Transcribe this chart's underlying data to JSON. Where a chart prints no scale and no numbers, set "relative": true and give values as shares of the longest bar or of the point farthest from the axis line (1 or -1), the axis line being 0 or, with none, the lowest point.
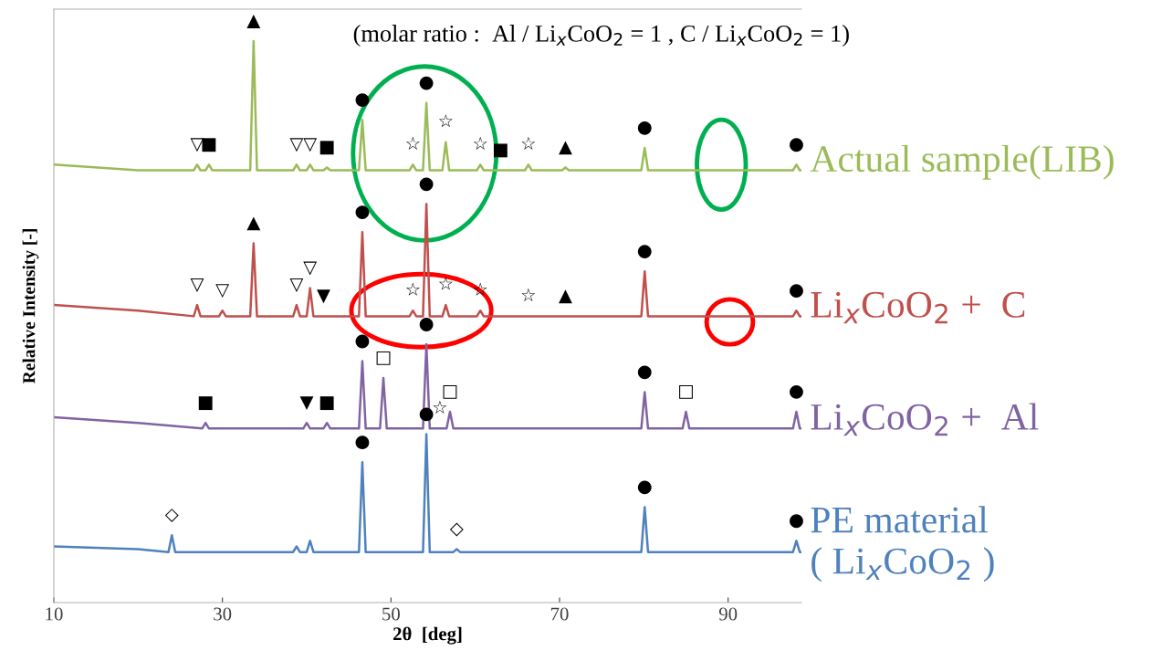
{
  "chart_data": {
    "type": "line",
    "relative": true,
    "xlabel": "2θ  [deg]",
    "ylabel": "Relative Intensity [-]",
    "xlim": [
      10,
      98.7
    ],
    "xticks": [
      10,
      30,
      50,
      70,
      90
    ],
    "tick_labels": "x",
    "grid": false,
    "legend": false,
    "marker": "none",
    "line_style": "solid",
    "series": [
      {
        "name": "Actual sample(LIB)",
        "color": "#9bbb59",
        "x": [
          10,
          20,
          26.6,
          27.0,
          27.4,
          28.0,
          28.4,
          28.8,
          33.3,
          33.7,
          34.1,
          38.4,
          38.8,
          39.2,
          40.0,
          40.4,
          40.8,
          42.0,
          42.4,
          42.8,
          46.2,
          46.6,
          47.0,
          52.2,
          52.6,
          53.0,
          53.8,
          54.2,
          54.6,
          56.1,
          56.5,
          56.9,
          60.2,
          60.6,
          61.0,
          65.9,
          66.3,
          66.7,
          70.3,
          70.7,
          71.1,
          79.7,
          80.1,
          80.5,
          97.7,
          98.1,
          98.5,
          98.7
        ],
        "values": [
          0.78,
          0.77,
          0.77,
          0.78,
          0.77,
          0.77,
          0.78,
          0.77,
          0.77,
          1.0,
          0.77,
          0.77,
          0.78,
          0.77,
          0.77,
          0.78,
          0.77,
          0.77,
          0.775,
          0.77,
          0.77,
          0.86,
          0.77,
          0.77,
          0.78,
          0.77,
          0.77,
          0.89,
          0.77,
          0.77,
          0.82,
          0.77,
          0.77,
          0.78,
          0.77,
          0.77,
          0.78,
          0.77,
          0.77,
          0.775,
          0.77,
          0.77,
          0.81,
          0.77,
          0.77,
          0.78,
          0.77,
          0.77
        ]
      },
      {
        "name": "Li$_{x}$CoO$_{2}$ +  C",
        "color": "#c0504d",
        "x": [
          10,
          20,
          26.6,
          27.0,
          27.4,
          29.6,
          30.0,
          30.4,
          33.3,
          33.7,
          34.1,
          38.4,
          38.8,
          39.2,
          40.0,
          40.4,
          40.8,
          46.2,
          46.6,
          47.0,
          52.2,
          52.6,
          53.0,
          53.8,
          54.2,
          54.6,
          56.1,
          56.5,
          56.9,
          60.2,
          60.6,
          61.0,
          79.7,
          80.1,
          80.5,
          97.7,
          98.1,
          98.5,
          98.7
        ],
        "values": [
          0.53,
          0.52,
          0.51,
          0.53,
          0.51,
          0.51,
          0.52,
          0.51,
          0.51,
          0.64,
          0.51,
          0.51,
          0.53,
          0.51,
          0.51,
          0.56,
          0.51,
          0.51,
          0.66,
          0.51,
          0.51,
          0.52,
          0.51,
          0.51,
          0.71,
          0.51,
          0.51,
          0.53,
          0.51,
          0.51,
          0.52,
          0.51,
          0.51,
          0.59,
          0.51,
          0.51,
          0.52,
          0.51,
          0.51
        ]
      },
      {
        "name": "Li$_{x}$CoO$_{2}$ +  Al",
        "color": "#8064a2",
        "x": [
          10,
          20,
          27.6,
          28.0,
          28.4,
          39.6,
          40.0,
          40.4,
          42.0,
          42.4,
          42.8,
          46.2,
          46.6,
          47.0,
          48.7,
          49.1,
          49.5,
          53.8,
          54.2,
          54.6,
          56.6,
          57.0,
          57.4,
          79.7,
          80.1,
          80.5,
          84.6,
          85.0,
          85.4,
          97.7,
          98.1,
          98.5,
          98.7
        ],
        "values": [
          0.33,
          0.32,
          0.31,
          0.32,
          0.31,
          0.31,
          0.32,
          0.31,
          0.31,
          0.32,
          0.31,
          0.31,
          0.43,
          0.31,
          0.31,
          0.4,
          0.31,
          0.31,
          0.46,
          0.31,
          0.31,
          0.34,
          0.31,
          0.31,
          0.375,
          0.31,
          0.31,
          0.34,
          0.31,
          0.31,
          0.34,
          0.31,
          0.31
        ]
      },
      {
        "name": "PE material\n( Li$_{x}$CoO$_{2}$ )",
        "color": "#4f81bd",
        "x": [
          10,
          20,
          23.6,
          24.0,
          24.4,
          38.4,
          38.8,
          39.2,
          40.0,
          40.4,
          40.8,
          46.2,
          46.6,
          47.0,
          53.8,
          54.2,
          54.6,
          57.4,
          57.8,
          58.2,
          79.7,
          80.1,
          80.5,
          97.7,
          98.1,
          98.5,
          98.7
        ],
        "values": [
          0.1,
          0.095,
          0.09,
          0.12,
          0.09,
          0.09,
          0.1,
          0.09,
          0.09,
          0.11,
          0.09,
          0.09,
          0.25,
          0.09,
          0.09,
          0.3,
          0.09,
          0.09,
          0.095,
          0.09,
          0.09,
          0.17,
          0.09,
          0.09,
          0.11,
          0.09,
          0.09
        ]
      }
    ],
    "annotations": [
      "(molar ratio :  Al / Li$_{x}$CoO$_{2}$ = 1 , C / Li$_{x}$CoO$_{2}$ = 1)",
      {
        "text": "▲",
        "x": 33.7,
        "y": 1.0
      },
      {
        "text": "▽",
        "x": 27.0,
        "y": 0.78
      },
      {
        "text": "■",
        "x": 28.4,
        "y": 0.78
      },
      {
        "text": "▽",
        "x": 38.8,
        "y": 0.78
      },
      {
        "text": "▽",
        "x": 40.4,
        "y": 0.78
      },
      {
        "text": "■",
        "x": 42.4,
        "y": 0.775
      },
      {
        "text": "●",
        "x": 46.6,
        "y": 0.86
      },
      {
        "text": "☆",
        "x": 52.6,
        "y": 0.78
      },
      {
        "text": "●",
        "x": 54.2,
        "y": 0.89
      },
      {
        "text": "☆",
        "x": 56.5,
        "y": 0.82
      },
      {
        "text": "☆",
        "x": 60.6,
        "y": 0.78
      },
      {
        "text": "■",
        "x": 63.0,
        "y": 0.77
      },
      {
        "text": "☆",
        "x": 66.3,
        "y": 0.78
      },
      {
        "text": "▲",
        "x": 70.7,
        "y": 0.775
      },
      {
        "text": "●",
        "x": 80.1,
        "y": 0.81
      },
      {
        "text": "●",
        "x": 98.1,
        "y": 0.78
      },
      {
        "text": "▽",
        "x": 27.0,
        "y": 0.53
      },
      {
        "text": "▽",
        "x": 30.0,
        "y": 0.52
      },
      {
        "text": "▲",
        "x": 33.7,
        "y": 0.64
      },
      {
        "text": "▽",
        "x": 38.8,
        "y": 0.53
      },
      {
        "text": "▽",
        "x": 40.4,
        "y": 0.56
      },
      {
        "text": "▼",
        "x": 42.0,
        "y": 0.51
      },
      {
        "text": "●",
        "x": 46.6,
        "y": 0.66
      },
      {
        "text": "☆",
        "x": 52.6,
        "y": 0.52
      },
      {
        "text": "●",
        "x": 54.2,
        "y": 0.71
      },
      {
        "text": "☆",
        "x": 56.5,
        "y": 0.53
      },
      {
        "text": "☆",
        "x": 60.6,
        "y": 0.52
      },
      {
        "text": "☆",
        "x": 66.3,
        "y": 0.51
      },
      {
        "text": "▲",
        "x": 70.7,
        "y": 0.51
      },
      {
        "text": "●",
        "x": 80.1,
        "y": 0.59
      },
      {
        "text": "●",
        "x": 98.1,
        "y": 0.52
      },
      {
        "text": "■",
        "x": 28.0,
        "y": 0.32
      },
      {
        "text": "▼",
        "x": 40.0,
        "y": 0.32
      },
      {
        "text": "■",
        "x": 42.4,
        "y": 0.32
      },
      {
        "text": "●",
        "x": 46.6,
        "y": 0.43
      },
      {
        "text": "□",
        "x": 49.1,
        "y": 0.4
      },
      {
        "text": "●",
        "x": 54.2,
        "y": 0.46
      },
      {
        "text": "☆",
        "x": 55.8,
        "y": 0.31
      },
      {
        "text": "□",
        "x": 57.0,
        "y": 0.34
      },
      {
        "text": "●",
        "x": 80.1,
        "y": 0.375
      },
      {
        "text": "□",
        "x": 85.0,
        "y": 0.34
      },
      {
        "text": "●",
        "x": 98.1,
        "y": 0.34
      },
      {
        "text": "◇",
        "x": 24.0,
        "y": 0.12
      },
      {
        "text": "●",
        "x": 46.6,
        "y": 0.25
      },
      {
        "text": "●",
        "x": 54.2,
        "y": 0.3
      },
      {
        "text": "◇",
        "x": 57.8,
        "y": 0.095
      },
      {
        "text": "●",
        "x": 80.1,
        "y": 0.17
      },
      {
        "text": "●",
        "x": 98.1,
        "y": 0.11
      }
    ]
  }
}
